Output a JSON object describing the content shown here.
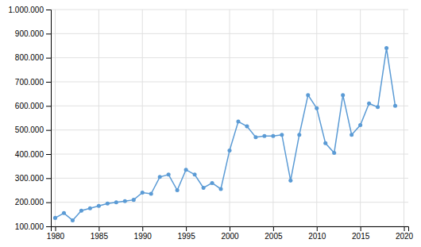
{
  "chart_data": {
    "type": "line",
    "x": [
      1980,
      1981,
      1982,
      1983,
      1984,
      1985,
      1986,
      1987,
      1988,
      1989,
      1990,
      1991,
      1992,
      1993,
      1994,
      1995,
      1996,
      1997,
      1998,
      1999,
      2000,
      2001,
      2002,
      2003,
      2004,
      2005,
      2006,
      2007,
      2008,
      2009,
      2010,
      2011,
      2012,
      2013,
      2014,
      2015,
      2016,
      2017,
      2018,
      2019
    ],
    "values": [
      135000,
      155000,
      125000,
      165000,
      175000,
      185000,
      195000,
      200000,
      205000,
      210000,
      240000,
      235000,
      305000,
      315000,
      250000,
      335000,
      315000,
      260000,
      280000,
      255000,
      415000,
      535000,
      515000,
      470000,
      475000,
      475000,
      480000,
      290000,
      480000,
      645000,
      590000,
      445000,
      405000,
      645000,
      480000,
      520000,
      610000,
      595000,
      840000,
      600000
    ],
    "color": "#5B9BD5",
    "marker": "circle",
    "xlim": [
      1979.5,
      2020.5
    ],
    "ylim": [
      100000,
      1000000
    ],
    "xticks": [
      1980,
      1985,
      1990,
      1995,
      2000,
      2005,
      2010,
      2015,
      2020
    ],
    "yticks": [
      {
        "value": 100000,
        "label": "100.000"
      },
      {
        "value": 200000,
        "label": "200.000"
      },
      {
        "value": 300000,
        "label": "300.000"
      },
      {
        "value": 400000,
        "label": "400.000"
      },
      {
        "value": 500000,
        "label": "500.000"
      },
      {
        "value": 600000,
        "label": "600.000"
      },
      {
        "value": 700000,
        "label": "700.000"
      },
      {
        "value": 800000,
        "label": "800.000"
      },
      {
        "value": 900000,
        "label": "900.000"
      },
      {
        "value": 1000000,
        "label": "1.000.000"
      }
    ],
    "grid": true
  }
}
